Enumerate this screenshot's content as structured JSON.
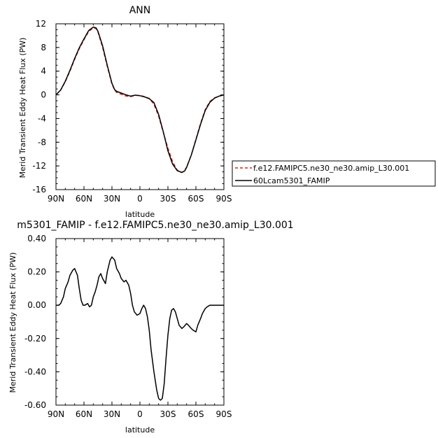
{
  "chart_data": [
    {
      "type": "line",
      "title": "ANN",
      "xlabel": "latitude",
      "ylabel": "Merid Transient Eddy Heat Flux (PW)",
      "xlim": [
        90,
        -90
      ],
      "ylim": [
        -16,
        12
      ],
      "x_ticks": [
        "90N",
        "60N",
        "30N",
        "0",
        "30S",
        "60S",
        "90S"
      ],
      "y_ticks": [
        "12",
        "8",
        "4",
        "0",
        "-4",
        "-8",
        "-12",
        "-16"
      ],
      "legend_position": "right",
      "colors": {
        "obs": "#d62020",
        "model": "#000000"
      },
      "series": [
        {
          "name": "f.e12.FAMIPC5.ne30_ne30.amip_L30.001",
          "style": "dashed",
          "color": "#d62020",
          "x": [
            90,
            85,
            80,
            75,
            70,
            65,
            60,
            55,
            50,
            47,
            45,
            40,
            35,
            30,
            27,
            25,
            20,
            15,
            10,
            5,
            0,
            -5,
            -10,
            -15,
            -20,
            -25,
            -30,
            -35,
            -40,
            -45,
            -48,
            -50,
            -55,
            -60,
            -65,
            -70,
            -75,
            -80,
            -85,
            -90
          ],
          "y": [
            0.0,
            0.8,
            2.2,
            4.0,
            6.0,
            7.8,
            9.3,
            10.7,
            11.3,
            11.2,
            10.6,
            8.0,
            4.8,
            1.8,
            0.8,
            0.4,
            0.1,
            -0.2,
            -0.3,
            -0.1,
            -0.1,
            -0.3,
            -0.6,
            -1.6,
            -3.6,
            -6.3,
            -9.0,
            -11.3,
            -12.7,
            -13.1,
            -12.7,
            -12.2,
            -10.2,
            -7.5,
            -4.8,
            -2.5,
            -1.1,
            -0.5,
            -0.2,
            0.0
          ]
        },
        {
          "name": "60Lcam5301_FAMIP",
          "style": "solid",
          "color": "#000000",
          "x": [
            90,
            85,
            80,
            75,
            70,
            65,
            60,
            55,
            50,
            47,
            45,
            40,
            35,
            30,
            27,
            25,
            20,
            15,
            10,
            5,
            0,
            -5,
            -10,
            -15,
            -20,
            -25,
            -30,
            -35,
            -40,
            -45,
            -48,
            -50,
            -55,
            -60,
            -65,
            -70,
            -75,
            -80,
            -85,
            -90
          ],
          "y": [
            0.0,
            0.82,
            2.3,
            4.15,
            6.15,
            7.95,
            9.45,
            10.85,
            11.45,
            11.3,
            10.75,
            8.25,
            5.0,
            1.95,
            0.85,
            0.6,
            0.3,
            0.0,
            -0.2,
            -0.05,
            -0.15,
            -0.35,
            -0.65,
            -1.3,
            -3.3,
            -6.2,
            -9.45,
            -11.7,
            -12.8,
            -13.1,
            -12.85,
            -12.25,
            -10.2,
            -7.6,
            -4.95,
            -2.65,
            -1.25,
            -0.55,
            -0.2,
            0.0
          ]
        }
      ]
    },
    {
      "type": "line",
      "title": "m5301_FAMIP - f.e12.FAMIPC5.ne30_ne30.amip_L30.001",
      "xlabel": "latitude",
      "ylabel": "Merid Transient Eddy Heat Flux (PW)",
      "xlim": [
        90,
        -90
      ],
      "ylim": [
        -0.6,
        0.4
      ],
      "x_ticks": [
        "90N",
        "60N",
        "30N",
        "0",
        "30S",
        "60S",
        "90S"
      ],
      "y_ticks": [
        "0.40",
        "0.20",
        "0.00",
        "-0.20",
        "-0.40",
        "-0.60"
      ],
      "series": [
        {
          "color": "#000000",
          "style": "solid",
          "x": [
            90,
            87,
            85,
            82,
            80,
            77,
            75,
            72,
            70,
            67,
            65,
            63,
            61,
            59,
            56,
            54,
            52,
            50,
            48,
            46,
            44,
            42,
            40,
            37,
            35,
            32,
            30,
            27,
            25,
            22,
            20,
            17,
            15,
            12,
            10,
            8,
            6,
            3,
            0,
            -2,
            -4,
            -6,
            -8,
            -10,
            -12,
            -15,
            -18,
            -20,
            -22,
            -24,
            -26,
            -28,
            -30,
            -32,
            -34,
            -36,
            -38,
            -40,
            -42,
            -45,
            -47,
            -50,
            -52,
            -55,
            -57,
            -60,
            -62,
            -65,
            -67,
            -70,
            -72,
            -75,
            -77,
            -80,
            -82,
            -85,
            -87,
            -90
          ],
          "y": [
            0.0,
            0.0,
            0.01,
            0.05,
            0.1,
            0.14,
            0.18,
            0.21,
            0.22,
            0.18,
            0.1,
            0.03,
            0.0,
            0.0,
            0.01,
            -0.01,
            0.0,
            0.05,
            0.08,
            0.12,
            0.17,
            0.19,
            0.16,
            0.13,
            0.2,
            0.27,
            0.29,
            0.27,
            0.22,
            0.19,
            0.16,
            0.14,
            0.15,
            0.12,
            0.07,
            0.0,
            -0.04,
            -0.06,
            -0.05,
            -0.02,
            0.0,
            -0.02,
            -0.07,
            -0.15,
            -0.27,
            -0.4,
            -0.51,
            -0.56,
            -0.57,
            -0.56,
            -0.47,
            -0.32,
            -0.18,
            -0.08,
            -0.03,
            -0.02,
            -0.04,
            -0.08,
            -0.12,
            -0.14,
            -0.13,
            -0.11,
            -0.12,
            -0.14,
            -0.15,
            -0.16,
            -0.12,
            -0.08,
            -0.05,
            -0.02,
            -0.01,
            0.0,
            0.0,
            0.0,
            0.0,
            0.0,
            0.0,
            0.0
          ]
        }
      ]
    }
  ]
}
